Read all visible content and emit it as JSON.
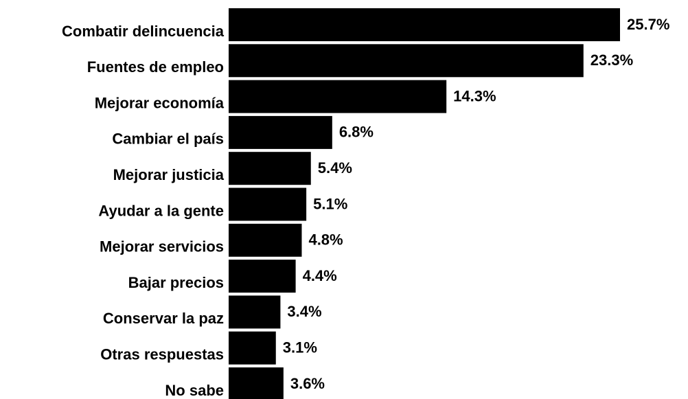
{
  "chart_data": {
    "type": "bar",
    "orientation": "horizontal",
    "color": "#000000",
    "categories": [
      "Combatir delincuencia",
      "Fuentes de empleo",
      "Mejorar economía",
      "Cambiar el país",
      "Mejorar justicia",
      "Ayudar a la gente",
      "Mejorar servicios",
      "Bajar precios",
      "Conservar la paz",
      "Otras respuestas",
      "No sabe"
    ],
    "values": [
      25.7,
      23.3,
      14.3,
      6.8,
      5.4,
      5.1,
      4.8,
      4.4,
      3.4,
      3.1,
      3.6
    ],
    "value_labels": [
      "25.7%",
      "23.3%",
      "14.3%",
      "6.8%",
      "5.4%",
      "5.1%",
      "4.8%",
      "4.4%",
      "3.4%",
      "3.1%",
      "3.6%"
    ]
  }
}
